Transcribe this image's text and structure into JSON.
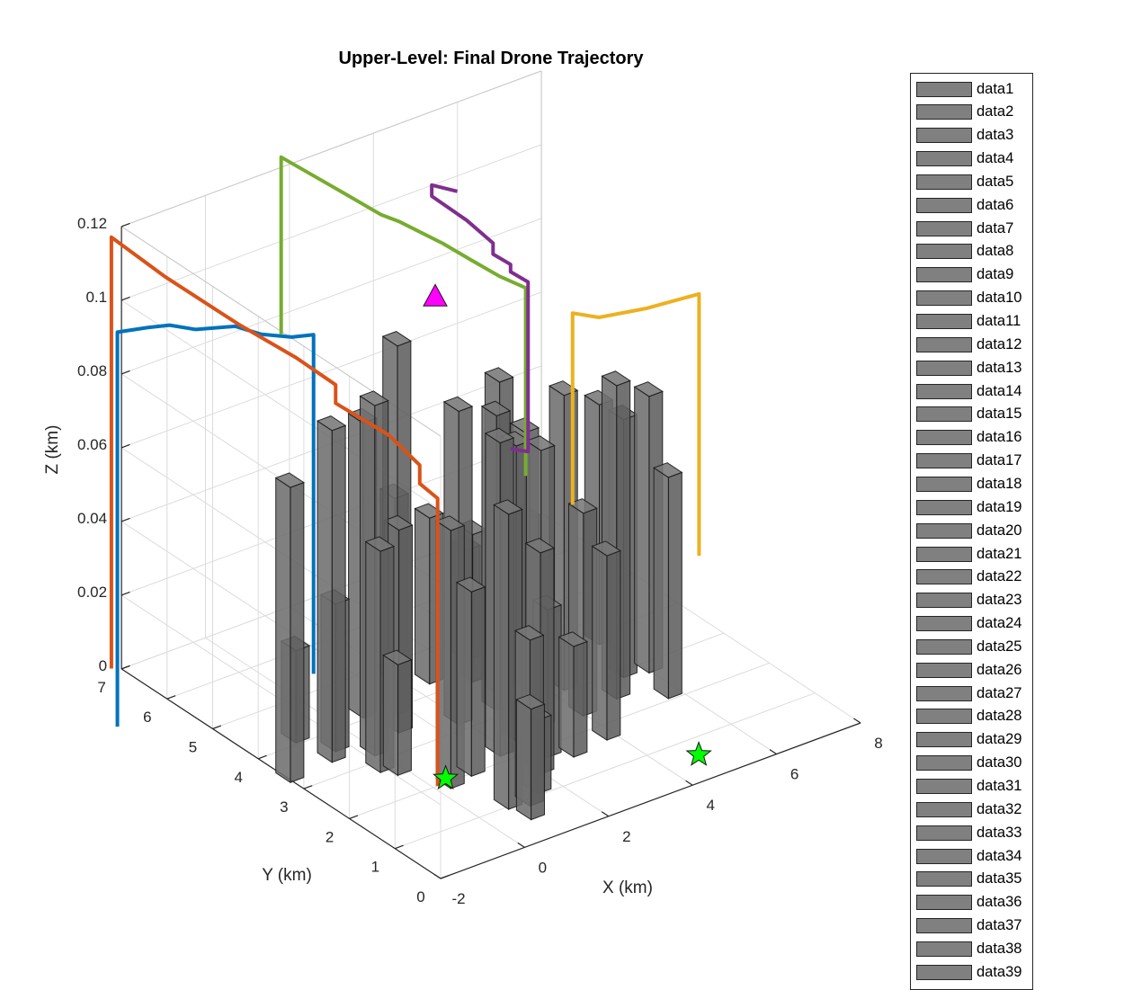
{
  "chart_data": {
    "type": "3d-bar-line",
    "title": "Upper-Level: Final Drone Trajectory",
    "xlabel": "X (km)",
    "ylabel": "Y (km)",
    "zlabel": "Z (km)",
    "xlim": [
      -2,
      8
    ],
    "ylim": [
      0,
      7
    ],
    "zlim": [
      0,
      0.12
    ],
    "xticks": [
      "-2",
      "0",
      "2",
      "4",
      "6",
      "8"
    ],
    "yticks": [
      "0",
      "1",
      "2",
      "3",
      "4",
      "5",
      "6",
      "7"
    ],
    "zticks": [
      "0",
      "0.02",
      "0.04",
      "0.06",
      "0.08",
      "0.1",
      "0.12"
    ],
    "grid": true,
    "legend_location": "outside-right",
    "legend_entries": [
      "data1",
      "data2",
      "data3",
      "data4",
      "data5",
      "data6",
      "data7",
      "data8",
      "data9",
      "data10",
      "data11",
      "data12",
      "data13",
      "data14",
      "data15",
      "data16",
      "data17",
      "data18",
      "data19",
      "data20",
      "data21",
      "data22",
      "data23",
      "data24",
      "data25",
      "data26",
      "data27",
      "data28",
      "data29",
      "data30",
      "data31",
      "data32",
      "data33",
      "data34",
      "data35",
      "data36",
      "data37",
      "data38",
      "data39"
    ],
    "building_color": "#666666",
    "buildings": [
      {
        "x": -1.9,
        "y": 3.4,
        "h": 0.08
      },
      {
        "x": -0.8,
        "y": 3.5,
        "h": 0.09
      },
      {
        "x": -0.3,
        "y": 2.9,
        "h": 0.06
      },
      {
        "x": -0.5,
        "y": 3.7,
        "h": 0.04
      },
      {
        "x": -0.9,
        "y": 4.2,
        "h": 0.025
      },
      {
        "x": 0.0,
        "y": 3.3,
        "h": 0.095
      },
      {
        "x": 0.7,
        "y": 4.2,
        "h": 0.08
      },
      {
        "x": 0.9,
        "y": 3.6,
        "h": 0.055
      },
      {
        "x": -0.1,
        "y": 2.7,
        "h": 0.03
      },
      {
        "x": 0.4,
        "y": 2.0,
        "h": 0.07
      },
      {
        "x": 1.0,
        "y": 2.1,
        "h": 0.05
      },
      {
        "x": 0.8,
        "y": 1.1,
        "h": 0.08
      },
      {
        "x": 1.2,
        "y": 1.0,
        "h": 0.045
      },
      {
        "x": 0.9,
        "y": 0.7,
        "h": 0.03
      },
      {
        "x": 1.9,
        "y": 2.3,
        "h": 0.085
      },
      {
        "x": 2.5,
        "y": 2.5,
        "h": 0.08
      },
      {
        "x": 2.1,
        "y": 1.6,
        "h": 0.06
      },
      {
        "x": 1.6,
        "y": 1.2,
        "h": 0.02
      },
      {
        "x": 2.6,
        "y": 1.9,
        "h": 0.04
      },
      {
        "x": 3.0,
        "y": 1.7,
        "h": 0.03
      },
      {
        "x": 3.2,
        "y": 2.6,
        "h": 0.075
      },
      {
        "x": 2.0,
        "y": 3.3,
        "h": 0.085
      },
      {
        "x": 1.3,
        "y": 4.0,
        "h": 0.1
      },
      {
        "x": 2.9,
        "y": 3.3,
        "h": 0.08
      },
      {
        "x": 3.3,
        "y": 3.6,
        "h": 0.085
      },
      {
        "x": 3.8,
        "y": 3.5,
        "h": 0.07
      },
      {
        "x": 4.4,
        "y": 3.2,
        "h": 0.08
      },
      {
        "x": 4.1,
        "y": 2.5,
        "h": 0.055
      },
      {
        "x": 3.9,
        "y": 1.8,
        "h": 0.05
      },
      {
        "x": 5.0,
        "y": 2.6,
        "h": 0.085
      },
      {
        "x": 5.6,
        "y": 3.0,
        "h": 0.07
      },
      {
        "x": 6.1,
        "y": 2.9,
        "h": 0.075
      },
      {
        "x": 6.0,
        "y": 3.9,
        "h": 0.065
      },
      {
        "x": 5.8,
        "y": 2.2,
        "h": 0.06
      },
      {
        "x": 4.8,
        "y": 4.4,
        "h": 0.035
      },
      {
        "x": 3.6,
        "y": 4.6,
        "h": 0.03
      },
      {
        "x": 2.5,
        "y": 4.4,
        "h": 0.045
      },
      {
        "x": 2.0,
        "y": 4.7,
        "h": 0.05
      },
      {
        "x": 3.2,
        "y": 4.1,
        "h": 0.04
      }
    ],
    "series": [
      {
        "color": "#0072BD",
        "points": [
          [
            -3.4,
            5.8,
            0
          ],
          [
            -3.4,
            5.8,
            0.107
          ],
          [
            -3.0,
            5.5,
            0.109
          ],
          [
            -2.7,
            5.3,
            0.11
          ],
          [
            -2.4,
            5.0,
            0.11
          ],
          [
            -1.9,
            4.6,
            0.112
          ],
          [
            -1.6,
            4.3,
            0.111
          ],
          [
            -1.2,
            4.0,
            0.111
          ],
          [
            -0.9,
            3.8,
            0.112
          ],
          [
            -0.9,
            3.8,
            0.02
          ]
        ]
      },
      {
        "color": "#D95319",
        "points": [
          [
            -3.0,
            6.3,
            0.01
          ],
          [
            -3.0,
            6.3,
            0.127
          ],
          [
            -2.5,
            5.6,
            0.12
          ],
          [
            -1.8,
            4.6,
            0.112
          ],
          [
            -1.1,
            4.0,
            0.105
          ],
          [
            -0.7,
            3.5,
            0.1
          ],
          [
            -0.7,
            3.5,
            0.095
          ],
          [
            -0.2,
            2.8,
            0.09
          ],
          [
            0.0,
            2.3,
            0.085
          ],
          [
            0.0,
            2.3,
            0.08
          ],
          [
            0.1,
            2.0,
            0.078
          ],
          [
            0.1,
            2.0,
            0.0
          ]
        ]
      },
      {
        "color": "#77AC30",
        "points": [
          [
            0.5,
            5.8,
            0.09
          ],
          [
            0.5,
            5.8,
            0.138
          ],
          [
            1.2,
            5.3,
            0.131
          ],
          [
            1.8,
            4.8,
            0.125
          ],
          [
            2.0,
            4.6,
            0.124
          ],
          [
            2.5,
            4.1,
            0.12
          ],
          [
            2.8,
            3.8,
            0.117
          ],
          [
            3.2,
            3.5,
            0.113
          ],
          [
            3.5,
            3.2,
            0.111
          ],
          [
            3.5,
            3.2,
            0.06
          ]
        ]
      },
      {
        "color": "#7E2F8E",
        "points": [
          [
            3.5,
            4.7,
            0.125
          ],
          [
            3.0,
            4.8,
            0.128
          ],
          [
            3.0,
            4.8,
            0.125
          ],
          [
            3.4,
            4.4,
            0.12
          ],
          [
            3.7,
            4.1,
            0.115
          ],
          [
            3.7,
            4.1,
            0.112
          ],
          [
            3.9,
            3.9,
            0.11
          ],
          [
            3.9,
            3.9,
            0.108
          ],
          [
            4.1,
            3.7,
            0.106
          ],
          [
            4.1,
            3.7,
            0.06
          ],
          [
            3.9,
            3.9,
            0.06
          ]
        ]
      },
      {
        "color": "#EDB120",
        "points": [
          [
            4.4,
            3.0,
            0.05
          ],
          [
            4.4,
            3.0,
            0.102
          ],
          [
            4.7,
            2.7,
            0.102
          ],
          [
            5.3,
            2.2,
            0.106
          ],
          [
            6.0,
            1.7,
            0.111
          ],
          [
            6.0,
            1.7,
            0.04
          ]
        ]
      }
    ],
    "start_marker": {
      "x": 0.4,
      "y": 2.1,
      "z": 0.0,
      "color": "#00FF00",
      "shape": "star"
    },
    "goal_marker": {
      "x": 4.8,
      "y": 0.6,
      "z": 0.0,
      "color": "#00FF00",
      "shape": "star"
    },
    "target_marker": {
      "x": 3.3,
      "y": 5.0,
      "z": 0.095,
      "color": "#FF00FF",
      "shape": "triangle"
    }
  }
}
